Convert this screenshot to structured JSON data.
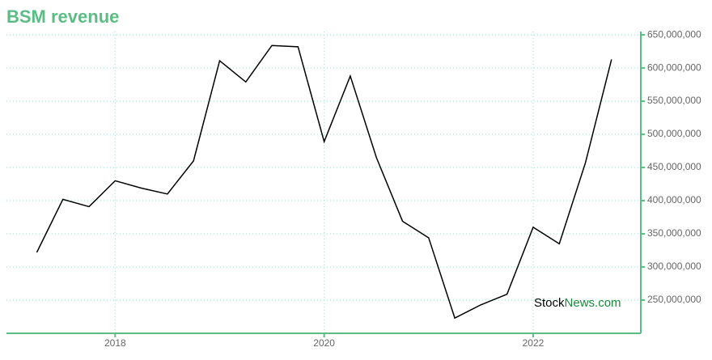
{
  "chart_data": {
    "type": "line",
    "title": "BSM revenue",
    "x": [
      2017.25,
      2017.5,
      2017.75,
      2018,
      2018.25,
      2018.5,
      2018.75,
      2019,
      2019.25,
      2019.5,
      2019.75,
      2020,
      2020.25,
      2020.5,
      2020.75,
      2021,
      2021.25,
      2021.5,
      2021.75,
      2022,
      2022.25,
      2022.5,
      2022.75
    ],
    "series": [
      {
        "color": "#000000",
        "values": [
          322000000,
          402000000,
          391000000,
          430000000,
          419000000,
          410000000,
          460000000,
          611000000,
          579000000,
          634000000,
          632000000,
          489000000,
          588000000,
          465000000,
          369000000,
          344000000,
          223000000,
          243000000,
          259000000,
          360000000,
          335000000,
          457000000,
          613000000
        ]
      }
    ],
    "xlim": [
      2016.96,
      2023.03
    ],
    "xticks": [
      2018,
      2020,
      2022
    ],
    "ylim": [
      200000000,
      655000000
    ],
    "yticks": [
      {
        "value": 250000000,
        "label": "250,000,000"
      },
      {
        "value": 300000000,
        "label": "300,000,000"
      },
      {
        "value": 350000000,
        "label": "350,000,000"
      },
      {
        "value": 400000000,
        "label": "400,000,000"
      },
      {
        "value": 450000000,
        "label": "450,000,000"
      },
      {
        "value": 500000000,
        "label": "500,000,000"
      },
      {
        "value": 550000000,
        "label": "550,000,000"
      },
      {
        "value": 600000000,
        "label": "600,000,000"
      },
      {
        "value": 650000000,
        "label": "650,000,000"
      }
    ],
    "grid": true,
    "axis_color": "#5cbd84",
    "watermark": [
      "Stock",
      "News.com"
    ]
  }
}
